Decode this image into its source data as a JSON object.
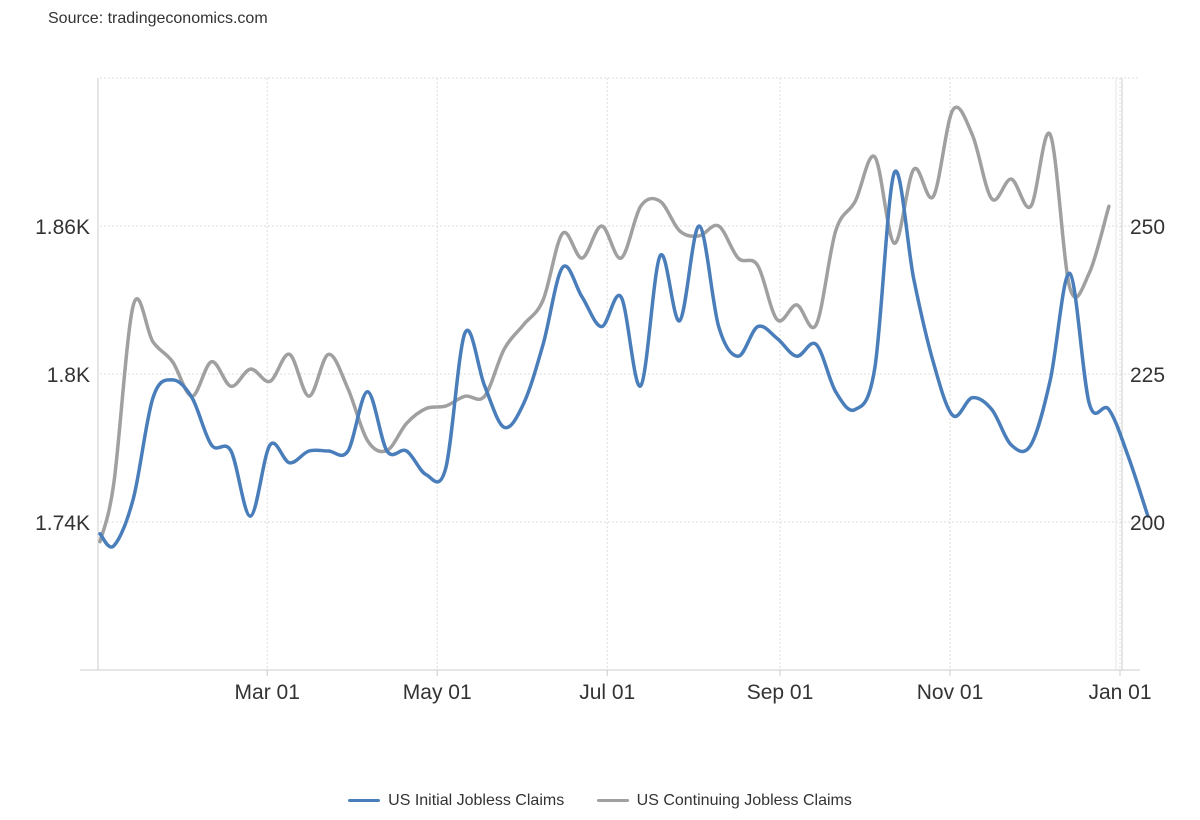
{
  "source": "Source: tradingeconomics.com",
  "chart_data": {
    "type": "line",
    "title": "",
    "xlabel": "",
    "ylabel": "",
    "x_axis": {
      "range": [
        "2024-01-01",
        "2025-01-01"
      ],
      "ticks": [
        {
          "date": "2024-03-01",
          "label": "Mar 01"
        },
        {
          "date": "2024-05-01",
          "label": "May 01"
        },
        {
          "date": "2024-07-01",
          "label": "Jul 01"
        },
        {
          "date": "2024-09-01",
          "label": "Sep 01"
        },
        {
          "date": "2024-11-01",
          "label": "Nov 01"
        },
        {
          "date": "2025-01-01",
          "label": "Jan 01"
        }
      ]
    },
    "left_axis": {
      "range": [
        1680,
        1920
      ],
      "ticks": [
        {
          "value": 1740,
          "label": "1.74K"
        },
        {
          "value": 1800,
          "label": "1.8K"
        },
        {
          "value": 1860,
          "label": "1.86K"
        }
      ]
    },
    "right_axis": {
      "range": [
        175,
        275
      ],
      "ticks": [
        {
          "value": 200,
          "label": "200"
        },
        {
          "value": 225,
          "label": "225"
        },
        {
          "value": 250,
          "label": "250"
        }
      ]
    },
    "grid": true,
    "legend_position": "bottom-center",
    "series": [
      {
        "name": "US Initial Jobless Claims",
        "axis": "right",
        "color": "#4a7ebb",
        "points": [
          [
            "2024-01-01",
            198
          ],
          [
            "2024-01-06",
            196
          ],
          [
            "2024-01-13",
            204
          ],
          [
            "2024-01-20",
            221
          ],
          [
            "2024-01-27",
            224
          ],
          [
            "2024-02-03",
            221
          ],
          [
            "2024-02-10",
            213
          ],
          [
            "2024-02-17",
            212
          ],
          [
            "2024-02-24",
            201
          ],
          [
            "2024-03-02",
            213
          ],
          [
            "2024-03-09",
            210
          ],
          [
            "2024-03-16",
            212
          ],
          [
            "2024-03-23",
            212
          ],
          [
            "2024-03-30",
            212
          ],
          [
            "2024-04-06",
            222
          ],
          [
            "2024-04-13",
            212
          ],
          [
            "2024-04-20",
            212
          ],
          [
            "2024-04-27",
            208
          ],
          [
            "2024-05-04",
            209
          ],
          [
            "2024-05-11",
            232
          ],
          [
            "2024-05-18",
            223
          ],
          [
            "2024-05-25",
            216
          ],
          [
            "2024-06-01",
            220
          ],
          [
            "2024-06-08",
            230
          ],
          [
            "2024-06-15",
            243
          ],
          [
            "2024-06-22",
            238
          ],
          [
            "2024-06-29",
            233
          ],
          [
            "2024-07-06",
            238
          ],
          [
            "2024-07-13",
            223
          ],
          [
            "2024-07-20",
            245
          ],
          [
            "2024-07-27",
            234
          ],
          [
            "2024-08-03",
            250
          ],
          [
            "2024-08-10",
            233
          ],
          [
            "2024-08-17",
            228
          ],
          [
            "2024-08-24",
            233
          ],
          [
            "2024-08-31",
            231
          ],
          [
            "2024-09-07",
            228
          ],
          [
            "2024-09-14",
            230
          ],
          [
            "2024-09-21",
            222
          ],
          [
            "2024-09-28",
            219
          ],
          [
            "2024-10-05",
            226
          ],
          [
            "2024-10-12",
            259
          ],
          [
            "2024-10-19",
            241
          ],
          [
            "2024-10-26",
            227
          ],
          [
            "2024-11-02",
            218
          ],
          [
            "2024-11-09",
            221
          ],
          [
            "2024-11-16",
            219
          ],
          [
            "2024-11-23",
            213
          ],
          [
            "2024-11-30",
            213
          ],
          [
            "2024-12-07",
            224
          ],
          [
            "2024-12-14",
            242
          ],
          [
            "2024-12-21",
            220
          ],
          [
            "2024-12-28",
            219
          ],
          [
            "2025-01-04",
            211
          ],
          [
            "2025-01-11",
            201
          ]
        ]
      },
      {
        "name": "US Continuing Jobless Claims",
        "axis": "left",
        "color": "#a0a0a0",
        "points": [
          [
            "2024-01-01",
            1732
          ],
          [
            "2024-01-06",
            1756
          ],
          [
            "2024-01-13",
            1828
          ],
          [
            "2024-01-20",
            1813
          ],
          [
            "2024-01-27",
            1805
          ],
          [
            "2024-02-03",
            1791
          ],
          [
            "2024-02-10",
            1805
          ],
          [
            "2024-02-17",
            1795
          ],
          [
            "2024-02-24",
            1802
          ],
          [
            "2024-03-02",
            1797
          ],
          [
            "2024-03-09",
            1808
          ],
          [
            "2024-03-16",
            1791
          ],
          [
            "2024-03-23",
            1808
          ],
          [
            "2024-03-30",
            1794
          ],
          [
            "2024-04-06",
            1773
          ],
          [
            "2024-04-13",
            1769
          ],
          [
            "2024-04-20",
            1780
          ],
          [
            "2024-04-27",
            1786
          ],
          [
            "2024-05-04",
            1787
          ],
          [
            "2024-05-11",
            1791
          ],
          [
            "2024-05-18",
            1791
          ],
          [
            "2024-05-25",
            1810
          ],
          [
            "2024-06-01",
            1820
          ],
          [
            "2024-06-08",
            1830
          ],
          [
            "2024-06-15",
            1857
          ],
          [
            "2024-06-22",
            1847
          ],
          [
            "2024-06-29",
            1860
          ],
          [
            "2024-07-06",
            1847
          ],
          [
            "2024-07-13",
            1868
          ],
          [
            "2024-07-20",
            1870
          ],
          [
            "2024-07-27",
            1858
          ],
          [
            "2024-08-03",
            1856
          ],
          [
            "2024-08-10",
            1860
          ],
          [
            "2024-08-17",
            1847
          ],
          [
            "2024-08-24",
            1844
          ],
          [
            "2024-08-31",
            1822
          ],
          [
            "2024-09-07",
            1828
          ],
          [
            "2024-09-14",
            1820
          ],
          [
            "2024-09-21",
            1858
          ],
          [
            "2024-09-28",
            1870
          ],
          [
            "2024-10-05",
            1888
          ],
          [
            "2024-10-12",
            1853
          ],
          [
            "2024-10-19",
            1883
          ],
          [
            "2024-10-26",
            1872
          ],
          [
            "2024-11-02",
            1907
          ],
          [
            "2024-11-09",
            1897
          ],
          [
            "2024-11-16",
            1871
          ],
          [
            "2024-11-23",
            1879
          ],
          [
            "2024-11-30",
            1868
          ],
          [
            "2024-12-07",
            1897
          ],
          [
            "2024-12-14",
            1835
          ],
          [
            "2024-12-21",
            1841
          ],
          [
            "2024-12-28",
            1868
          ]
        ]
      }
    ]
  },
  "legend": [
    {
      "label": "US Initial Jobless Claims",
      "color": "#4a7ebb"
    },
    {
      "label": "US Continuing Jobless Claims",
      "color": "#a0a0a0"
    }
  ]
}
